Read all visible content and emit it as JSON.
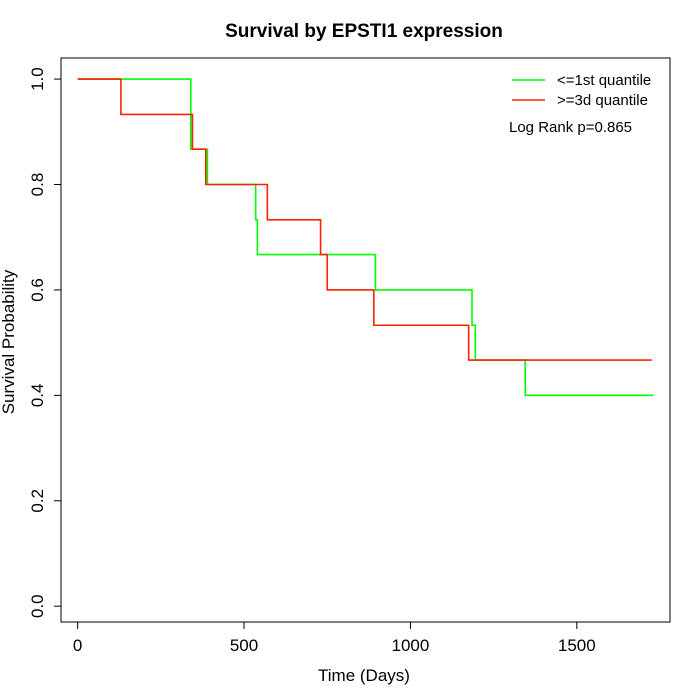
{
  "chart_data": {
    "type": "line",
    "title": "Survival by EPSTI1 expression",
    "xlabel": "Time (Days)",
    "ylabel": "Survival Probability",
    "xlim": [
      -50,
      1780
    ],
    "ylim": [
      -0.03,
      1.04
    ],
    "x_ticks": [
      0,
      500,
      1000,
      1500
    ],
    "y_ticks": [
      0.0,
      0.2,
      0.4,
      0.6,
      0.8,
      1.0
    ],
    "x_tick_labels": [
      "0",
      "500",
      "1000",
      "1500"
    ],
    "y_tick_labels": [
      "0.0",
      "0.2",
      "0.4",
      "0.6",
      "0.8",
      "1.0"
    ],
    "grid": false,
    "legend_position": "top-right",
    "annotation": "Log Rank p=0.865",
    "series": [
      {
        "name": "<=1st quantile",
        "color": "#00ff00",
        "step": true,
        "x": [
          0,
          340,
          390,
          535,
          540,
          895,
          1185,
          1195,
          1345,
          1730
        ],
        "y": [
          1.0,
          0.867,
          0.8,
          0.733,
          0.667,
          0.6,
          0.533,
          0.467,
          0.4,
          0.4
        ]
      },
      {
        "name": ">=3d quantile",
        "color": "#ff2000",
        "step": true,
        "x": [
          0,
          130,
          345,
          385,
          570,
          730,
          750,
          890,
          1175,
          1725
        ],
        "y": [
          1.0,
          0.933,
          0.867,
          0.8,
          0.733,
          0.667,
          0.6,
          0.533,
          0.467,
          0.467
        ]
      }
    ]
  }
}
